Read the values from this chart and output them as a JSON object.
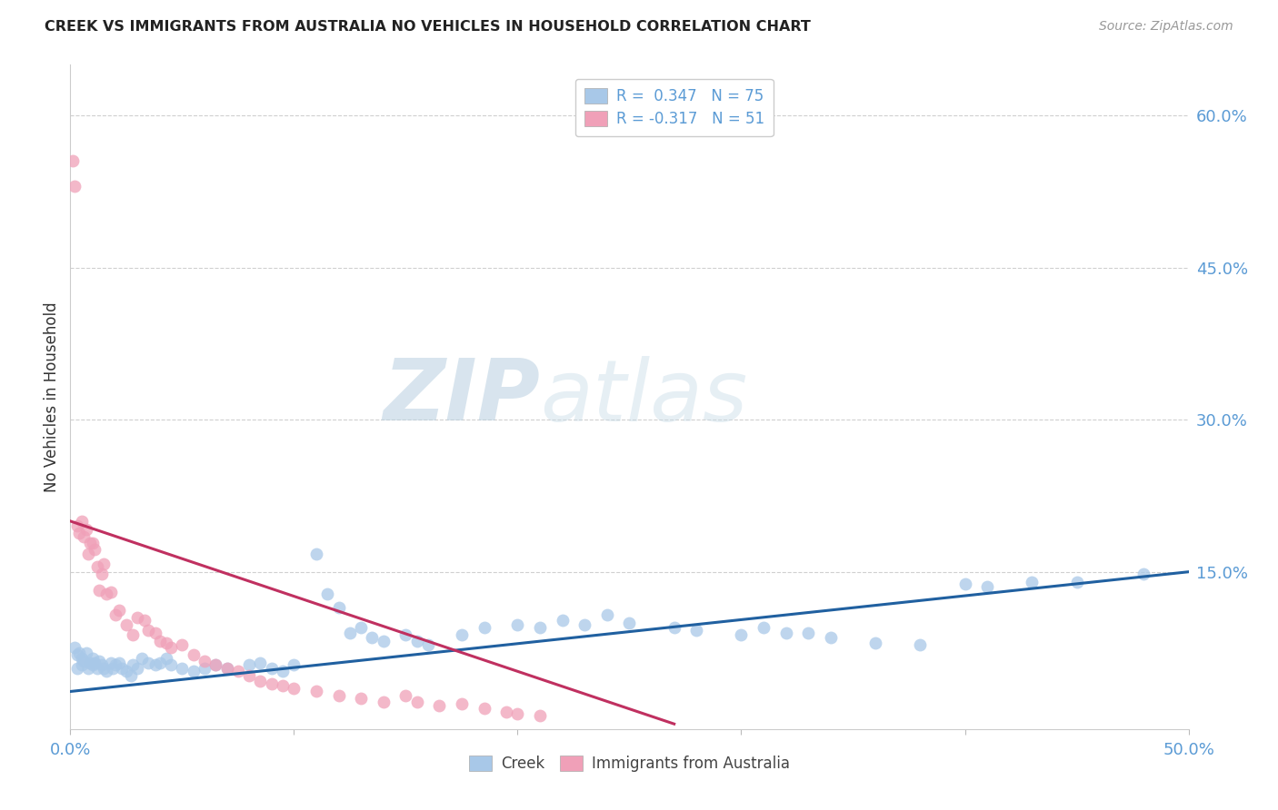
{
  "title": "CREEK VS IMMIGRANTS FROM AUSTRALIA NO VEHICLES IN HOUSEHOLD CORRELATION CHART",
  "source": "Source: ZipAtlas.com",
  "ylabel": "No Vehicles in Household",
  "xlim": [
    0.0,
    0.5
  ],
  "ylim": [
    -0.005,
    0.65
  ],
  "x_tick_labels": [
    "0.0%",
    "",
    "",
    "",
    "",
    "50.0%"
  ],
  "x_tick_positions": [
    0.0,
    0.1,
    0.2,
    0.3,
    0.4,
    0.5
  ],
  "y_tick_labels_right": [
    "60.0%",
    "45.0%",
    "30.0%",
    "15.0%"
  ],
  "y_tick_positions_right": [
    0.6,
    0.45,
    0.3,
    0.15
  ],
  "grid_color": "#d0d0d0",
  "background_color": "#ffffff",
  "creek_color": "#a8c8e8",
  "australia_color": "#f0a0b8",
  "creek_line_color": "#2060a0",
  "australia_line_color": "#c03060",
  "creek_line_x0": 0.0,
  "creek_line_y0": 0.032,
  "creek_line_x1": 0.5,
  "creek_line_y1": 0.15,
  "aus_line_x0": 0.0,
  "aus_line_y0": 0.2,
  "aus_line_x1": 0.27,
  "aus_line_y1": 0.0,
  "creek_x": [
    0.002,
    0.003,
    0.003,
    0.004,
    0.005,
    0.005,
    0.006,
    0.007,
    0.008,
    0.009,
    0.01,
    0.01,
    0.011,
    0.012,
    0.013,
    0.014,
    0.015,
    0.016,
    0.018,
    0.019,
    0.02,
    0.022,
    0.023,
    0.025,
    0.027,
    0.028,
    0.03,
    0.032,
    0.035,
    0.038,
    0.04,
    0.043,
    0.045,
    0.05,
    0.055,
    0.06,
    0.065,
    0.07,
    0.08,
    0.085,
    0.09,
    0.095,
    0.1,
    0.11,
    0.115,
    0.12,
    0.125,
    0.13,
    0.135,
    0.14,
    0.15,
    0.155,
    0.16,
    0.175,
    0.185,
    0.2,
    0.21,
    0.22,
    0.23,
    0.24,
    0.25,
    0.27,
    0.28,
    0.3,
    0.31,
    0.32,
    0.33,
    0.34,
    0.36,
    0.38,
    0.4,
    0.41,
    0.43,
    0.45,
    0.48
  ],
  "creek_y": [
    0.075,
    0.068,
    0.055,
    0.07,
    0.065,
    0.058,
    0.062,
    0.07,
    0.055,
    0.06,
    0.058,
    0.065,
    0.06,
    0.055,
    0.062,
    0.058,
    0.055,
    0.052,
    0.06,
    0.055,
    0.058,
    0.06,
    0.055,
    0.052,
    0.048,
    0.058,
    0.055,
    0.065,
    0.06,
    0.058,
    0.06,
    0.065,
    0.058,
    0.055,
    0.052,
    0.055,
    0.058,
    0.055,
    0.058,
    0.06,
    0.055,
    0.052,
    0.058,
    0.168,
    0.128,
    0.115,
    0.09,
    0.095,
    0.085,
    0.082,
    0.088,
    0.082,
    0.078,
    0.088,
    0.095,
    0.098,
    0.095,
    0.102,
    0.098,
    0.108,
    0.1,
    0.095,
    0.092,
    0.088,
    0.095,
    0.09,
    0.09,
    0.085,
    0.08,
    0.078,
    0.138,
    0.135,
    0.14,
    0.14,
    0.148
  ],
  "australia_x": [
    0.001,
    0.002,
    0.003,
    0.004,
    0.005,
    0.006,
    0.007,
    0.008,
    0.009,
    0.01,
    0.011,
    0.012,
    0.013,
    0.014,
    0.015,
    0.016,
    0.018,
    0.02,
    0.022,
    0.025,
    0.028,
    0.03,
    0.033,
    0.035,
    0.038,
    0.04,
    0.043,
    0.045,
    0.05,
    0.055,
    0.06,
    0.065,
    0.07,
    0.075,
    0.08,
    0.085,
    0.09,
    0.095,
    0.1,
    0.11,
    0.12,
    0.13,
    0.14,
    0.15,
    0.155,
    0.165,
    0.175,
    0.185,
    0.195,
    0.2,
    0.21
  ],
  "australia_y": [
    0.555,
    0.53,
    0.195,
    0.188,
    0.2,
    0.185,
    0.192,
    0.168,
    0.178,
    0.178,
    0.172,
    0.155,
    0.132,
    0.148,
    0.158,
    0.128,
    0.13,
    0.108,
    0.112,
    0.098,
    0.088,
    0.105,
    0.102,
    0.092,
    0.09,
    0.082,
    0.08,
    0.075,
    0.078,
    0.068,
    0.062,
    0.058,
    0.055,
    0.052,
    0.048,
    0.042,
    0.04,
    0.038,
    0.035,
    0.032,
    0.028,
    0.025,
    0.022,
    0.028,
    0.022,
    0.018,
    0.02,
    0.015,
    0.012,
    0.01,
    0.008
  ]
}
